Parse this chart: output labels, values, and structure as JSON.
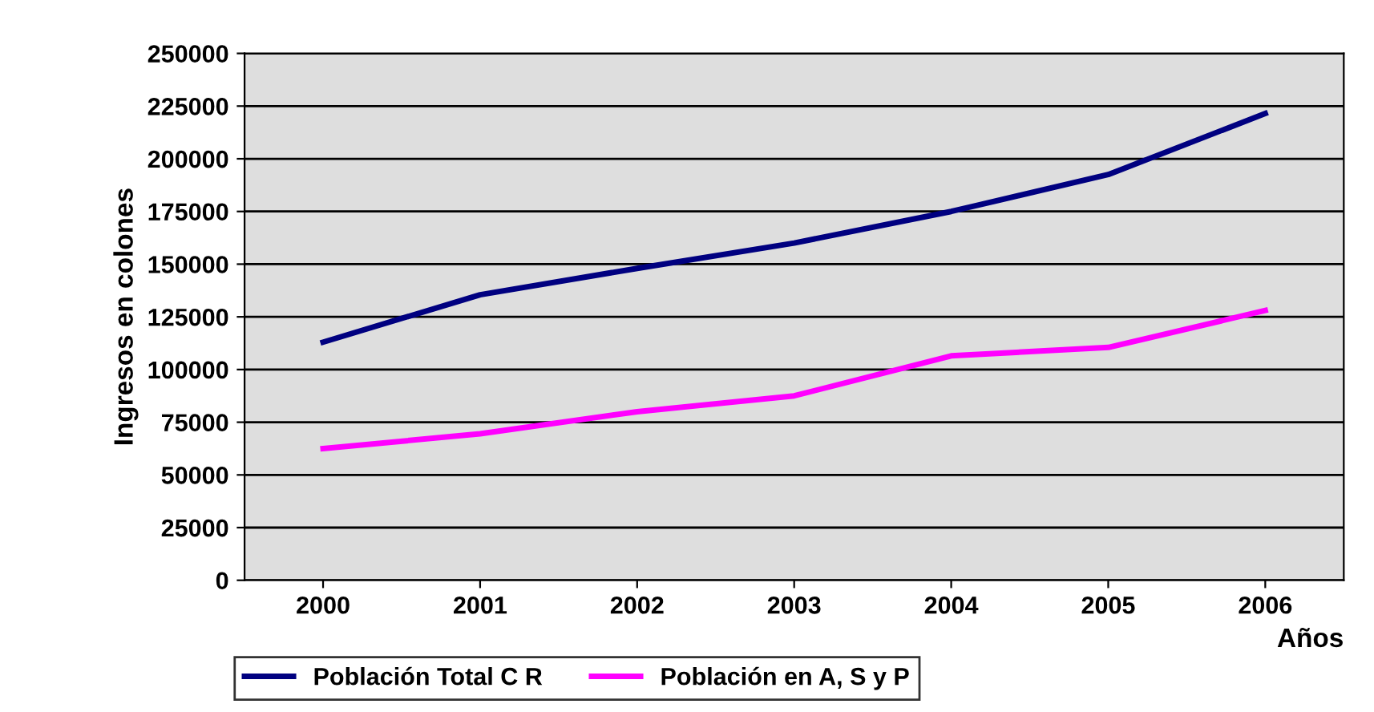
{
  "chart_data": {
    "type": "line",
    "xlabel": "Años",
    "ylabel": "Ingresos en colones",
    "categories": [
      "2000",
      "2001",
      "2002",
      "2003",
      "2004",
      "2005",
      "2006"
    ],
    "series": [
      {
        "name": "Población Total C R",
        "color": "#000080",
        "values": [
          113000,
          135500,
          148000,
          160000,
          175000,
          192500,
          221500
        ]
      },
      {
        "name": "Población en A, S y P",
        "color": "#ff00ff",
        "values": [
          62500,
          69500,
          80000,
          87500,
          106500,
          110500,
          128000
        ]
      }
    ],
    "ylim": [
      0,
      250000
    ],
    "yticks": [
      0,
      25000,
      50000,
      75000,
      100000,
      125000,
      150000,
      175000,
      200000,
      225000,
      250000
    ],
    "grid": "y",
    "legend": "bottom",
    "marker": "none",
    "line_style": "solid"
  }
}
